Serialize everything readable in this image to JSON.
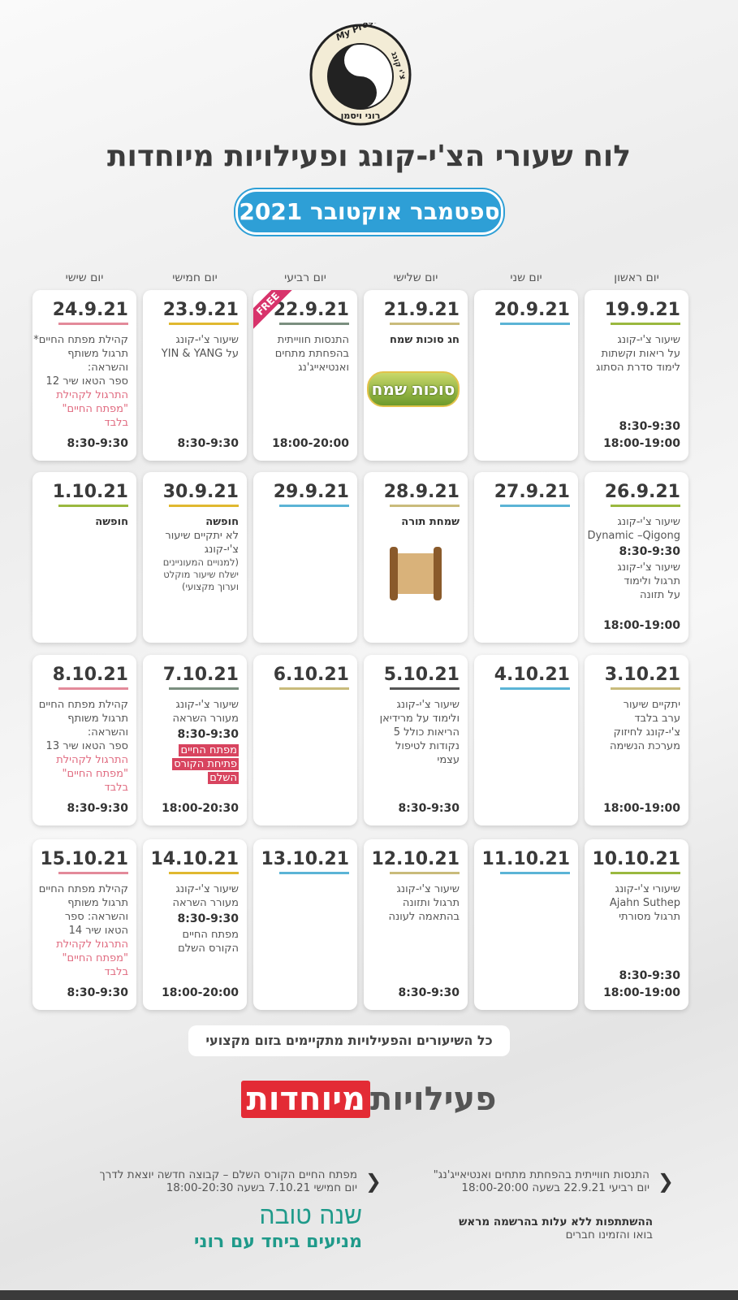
{
  "logo": {
    "top": "My Present",
    "side": "צ'י קונג",
    "bottom": "רוני ויסמן"
  },
  "title": "לוח שעורי הצ'י-קונג ופעילויות מיוחדות",
  "subtitle": "ספטמבר אוקטובר 2021",
  "days": [
    "יום ראשון",
    "יום שני",
    "יום שלישי",
    "יום רביעי",
    "יום חמישי",
    "יום שישי"
  ],
  "weeks": [
    [
      {
        "date": "19.9.21",
        "color": "#9ab83f",
        "lines": [
          {
            "text": "שיעור צ'י-קונג",
            "style": "normal"
          },
          {
            "text": "על ריאות וקשתות",
            "style": "normal"
          },
          {
            "text": "לימוד סדרת הסתוג",
            "style": "normal"
          }
        ],
        "footer": [
          "8:30-9:30",
          "18:00-19:00"
        ]
      },
      {
        "date": "20.9.21",
        "color": "#5bb4d6",
        "lines": [],
        "footer": []
      },
      {
        "date": "21.9.21",
        "color": "#c9bb7b",
        "lines": [
          {
            "text": "חג סוכות שמח",
            "style": "bold"
          }
        ],
        "image": "sukkot",
        "image_text": "סוכות שמח",
        "footer": []
      },
      {
        "date": "22.9.21",
        "color": "#7a8f7f",
        "badge": "FREE",
        "lines": [
          {
            "text": "התנסות חווייתית",
            "style": "normal"
          },
          {
            "text": "בהפחתת מתחים",
            "style": "normal"
          },
          {
            "text": "ואנטיאייג'נג",
            "style": "normal"
          }
        ],
        "footer": [
          "18:00-20:00"
        ]
      },
      {
        "date": "23.9.21",
        "color": "#e0b830",
        "lines": [
          {
            "text": "שיעור צ'י-קונג",
            "style": "normal"
          },
          {
            "text": "על YIN & YANG",
            "style": "normal"
          }
        ],
        "footer": [
          "8:30-9:30"
        ]
      },
      {
        "date": "24.9.21",
        "color": "#e38a9a",
        "lines": [
          {
            "text": "קהילת מפתח החיים*",
            "style": "normal"
          },
          {
            "text": "תרגול משותף",
            "style": "normal"
          },
          {
            "text": "והשראה:",
            "style": "normal"
          },
          {
            "text": "ספר הטאו שיר 12",
            "style": "normal"
          },
          {
            "text": "התרגול לקהילת",
            "style": "pink"
          },
          {
            "text": "\"מפתח החיים\"",
            "style": "pink"
          },
          {
            "text": "בלבד",
            "style": "pink"
          }
        ],
        "footer": [
          "8:30-9:30"
        ]
      }
    ],
    [
      {
        "date": "26.9.21",
        "color": "#9ab83f",
        "lines": [
          {
            "text": "שיעור צ'י-קונג",
            "style": "normal"
          },
          {
            "text": "Dynamic –Qigong",
            "style": "normal"
          },
          {
            "text": "8:30-9:30",
            "style": "time"
          },
          {
            "text": "שיעור צ'י-קונג",
            "style": "normal"
          },
          {
            "text": "תרגול ולימוד",
            "style": "normal"
          },
          {
            "text": "על תזונה",
            "style": "normal"
          }
        ],
        "footer": [
          "18:00-19:00"
        ]
      },
      {
        "date": "27.9.21",
        "color": "#5bb4d6",
        "lines": [],
        "footer": []
      },
      {
        "date": "28.9.21",
        "color": "#c9bb7b",
        "lines": [
          {
            "text": "שמחת תורה",
            "style": "bold"
          }
        ],
        "image": "scroll",
        "footer": []
      },
      {
        "date": "29.9.21",
        "color": "#5bb4d6",
        "lines": [],
        "footer": []
      },
      {
        "date": "30.9.21",
        "color": "#e0b830",
        "lines": [
          {
            "text": "חופשה",
            "style": "bold"
          },
          {
            "text": "לא יתקיים שיעור",
            "style": "normal"
          },
          {
            "text": "צ'י-קונג",
            "style": "normal"
          },
          {
            "text": "(למנויים המעוניינים",
            "style": "small"
          },
          {
            "text": "ישלח שיעור מוקלט",
            "style": "small"
          },
          {
            "text": "וערוך מקצועי)",
            "style": "small"
          }
        ],
        "footer": []
      },
      {
        "date": "1.10.21",
        "color": "#9ab83f",
        "lines": [
          {
            "text": "חופשה",
            "style": "bold"
          }
        ],
        "footer": []
      }
    ],
    [
      {
        "date": "3.10.21",
        "color": "#c9bb7b",
        "lines": [
          {
            "text": "יתקיים שיעור",
            "style": "normal"
          },
          {
            "text": "ערב בלבד",
            "style": "normal"
          },
          {
            "text": "צ'י-קונג לחיזוק",
            "style": "normal"
          },
          {
            "text": "מערכת הנשימה",
            "style": "normal"
          }
        ],
        "footer": [
          "18:00-19:00"
        ]
      },
      {
        "date": "4.10.21",
        "color": "#5bb4d6",
        "lines": [],
        "footer": []
      },
      {
        "date": "5.10.21",
        "color": "#555555",
        "lines": [
          {
            "text": "שיעור צ'י-קונג",
            "style": "normal"
          },
          {
            "text": "ולימוד על מרידיאן",
            "style": "normal"
          },
          {
            "text": "הריאות כולל 5",
            "style": "normal"
          },
          {
            "text": "נקודות לטיפול",
            "style": "normal"
          },
          {
            "text": "עצמי",
            "style": "normal"
          }
        ],
        "footer": [
          "8:30-9:30"
        ]
      },
      {
        "date": "6.10.21",
        "color": "#c9bb7b",
        "lines": [],
        "footer": []
      },
      {
        "date": "7.10.21",
        "color": "#7a8f7f",
        "lines": [
          {
            "text": "שיעור צ'י-קונג",
            "style": "normal"
          },
          {
            "text": "מעורר השראה",
            "style": "normal"
          },
          {
            "text": "8:30-9:30",
            "style": "time"
          },
          {
            "text": "מפתח החיים",
            "style": "mark"
          },
          {
            "text": "פתיחת הקורס",
            "style": "mark"
          },
          {
            "text": "השלם",
            "style": "mark"
          }
        ],
        "footer": [
          "18:00-20:30"
        ]
      },
      {
        "date": "8.10.21",
        "color": "#e38a9a",
        "lines": [
          {
            "text": "קהילת מפתח החיים",
            "style": "normal"
          },
          {
            "text": "תרגול משותף",
            "style": "normal"
          },
          {
            "text": "והשראה:",
            "style": "normal"
          },
          {
            "text": "ספר הטאו שיר 13",
            "style": "normal"
          },
          {
            "text": "התרגול לקהילת",
            "style": "pink"
          },
          {
            "text": "\"מפתח החיים\"",
            "style": "pink"
          },
          {
            "text": "בלבד",
            "style": "pink"
          }
        ],
        "footer": [
          "8:30-9:30"
        ]
      }
    ],
    [
      {
        "date": "10.10.21",
        "color": "#9ab83f",
        "lines": [
          {
            "text": "שיעורי צ'י-קונג",
            "style": "normal"
          },
          {
            "text": "Ajahn Suthep",
            "style": "normal"
          },
          {
            "text": "תרגול מסורתי",
            "style": "normal"
          }
        ],
        "footer": [
          "8:30-9:30",
          "18:00-19:00"
        ]
      },
      {
        "date": "11.10.21",
        "color": "#5bb4d6",
        "lines": [],
        "footer": []
      },
      {
        "date": "12.10.21",
        "color": "#c9bb7b",
        "lines": [
          {
            "text": "שיעור צ'י-קונג",
            "style": "normal"
          },
          {
            "text": "תרגול ותזונה",
            "style": "normal"
          },
          {
            "text": "בהתאמה לעונה",
            "style": "normal"
          }
        ],
        "footer": [
          "8:30-9:30"
        ]
      },
      {
        "date": "13.10.21",
        "color": "#5bb4d6",
        "lines": [],
        "footer": []
      },
      {
        "date": "14.10.21",
        "color": "#e0b830",
        "lines": [
          {
            "text": "שיעור צ'י-קונג",
            "style": "normal"
          },
          {
            "text": "מעורר השראה",
            "style": "normal"
          },
          {
            "text": "8:30-9:30",
            "style": "time"
          },
          {
            "text": "מפתח החיים",
            "style": "normal"
          },
          {
            "text": "הקורס השלם",
            "style": "normal"
          }
        ],
        "footer": [
          "18:00-20:00"
        ]
      },
      {
        "date": "15.10.21",
        "color": "#e38a9a",
        "lines": [
          {
            "text": "קהילת מפתח החיים",
            "style": "normal"
          },
          {
            "text": "תרגול משותף",
            "style": "normal"
          },
          {
            "text": "והשראה: ספר",
            "style": "normal"
          },
          {
            "text": "הטאו שיר 14",
            "style": "normal"
          },
          {
            "text": "התרגול לקהילת",
            "style": "pink"
          },
          {
            "text": "\"מפתח החיים\"",
            "style": "pink"
          },
          {
            "text": "בלבד",
            "style": "pink"
          }
        ],
        "footer": [
          "8:30-9:30"
        ]
      }
    ]
  ],
  "note": "כל השיעורים והפעילויות מתקיימים בזום מקצועי",
  "special": {
    "heading": "פעילויות",
    "heading_box": "מיוחדות",
    "items": [
      {
        "title": "התנסות חווייתית בהפחתת מתחים ואנטיאייג'נג\"",
        "when": "יום רביעי 22.9.21 בשעה 18:00-20:00"
      },
      {
        "title": "מפתח החיים הקורס השלם – קבוצה חדשה יוצאת לדרך",
        "when": "יום חמישי 7.10.21 בשעה 18:00-20:30"
      }
    ],
    "signup": "ההשתתפות ללא עלות בהרשמה מראש",
    "invite": "בואו והזמינו חברים",
    "greeting": "שנה טובה",
    "slogan": "מניעים ביחד עם רוני"
  }
}
